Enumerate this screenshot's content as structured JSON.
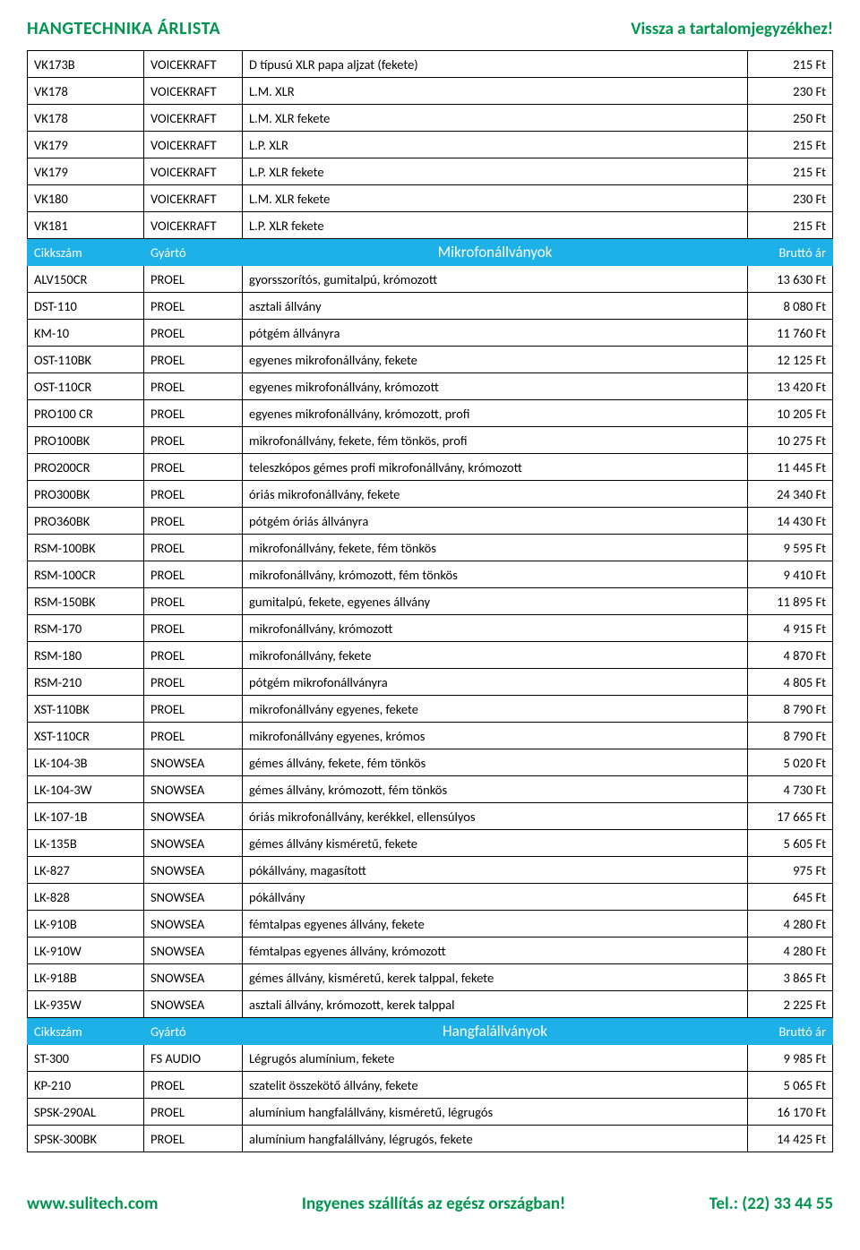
{
  "header": {
    "title": "HANGTECHNIKA ÁRLISTA",
    "back_link": "Vissza a tartalomjegyzékhez!"
  },
  "columns": {
    "code": "Cikkszám",
    "mfr": "Gyártó",
    "price": "Bruttó ár"
  },
  "sections": [
    {
      "title": null,
      "rows": [
        {
          "code": "VK173B",
          "mfr": "VOICEKRAFT",
          "desc": "D típusú XLR papa aljzat (fekete)",
          "price": "215 Ft"
        },
        {
          "code": "VK178",
          "mfr": "VOICEKRAFT",
          "desc": "L.M. XLR",
          "price": "230 Ft"
        },
        {
          "code": "VK178",
          "mfr": "VOICEKRAFT",
          "desc": "L.M. XLR fekete",
          "price": "250 Ft"
        },
        {
          "code": "VK179",
          "mfr": "VOICEKRAFT",
          "desc": "L.P. XLR",
          "price": "215 Ft"
        },
        {
          "code": "VK179",
          "mfr": "VOICEKRAFT",
          "desc": "L.P. XLR fekete",
          "price": "215 Ft"
        },
        {
          "code": "VK180",
          "mfr": "VOICEKRAFT",
          "desc": "L.M. XLR fekete",
          "price": "230 Ft"
        },
        {
          "code": "VK181",
          "mfr": "VOICEKRAFT",
          "desc": "L.P. XLR fekete",
          "price": "215 Ft"
        }
      ]
    },
    {
      "title": "Mikrofonállványok",
      "rows": [
        {
          "code": "ALV150CR",
          "mfr": "PROEL",
          "desc": "gyorsszorítós, gumitalpú, krómozott",
          "price": "13 630 Ft"
        },
        {
          "code": "DST-110",
          "mfr": "PROEL",
          "desc": "asztali állvány",
          "price": "8 080 Ft"
        },
        {
          "code": "KM-10",
          "mfr": "PROEL",
          "desc": "pótgém állványra",
          "price": "11 760 Ft"
        },
        {
          "code": "OST-110BK",
          "mfr": "PROEL",
          "desc": "egyenes mikrofonállvány, fekete",
          "price": "12 125 Ft"
        },
        {
          "code": "OST-110CR",
          "mfr": "PROEL",
          "desc": "egyenes mikrofonállvány, krómozott",
          "price": "13 420 Ft"
        },
        {
          "code": "PRO100 CR",
          "mfr": "PROEL",
          "desc": "egyenes mikrofonállvány, krómozott, profi",
          "price": "10 205 Ft"
        },
        {
          "code": "PRO100BK",
          "mfr": "PROEL",
          "desc": "mikrofonállvány, fekete, fém tönkös, profi",
          "price": "10 275 Ft"
        },
        {
          "code": "PRO200CR",
          "mfr": "PROEL",
          "desc": "teleszkópos gémes profi mikrofonállvány, krómozott",
          "price": "11 445 Ft"
        },
        {
          "code": "PRO300BK",
          "mfr": "PROEL",
          "desc": "óriás mikrofonállvány, fekete",
          "price": "24 340 Ft"
        },
        {
          "code": "PRO360BK",
          "mfr": "PROEL",
          "desc": "pótgém óriás állványra",
          "price": "14 430 Ft"
        },
        {
          "code": "RSM-100BK",
          "mfr": "PROEL",
          "desc": "mikrofonállvány, fekete, fém tönkös",
          "price": "9 595 Ft"
        },
        {
          "code": "RSM-100CR",
          "mfr": "PROEL",
          "desc": "mikrofonállvány, krómozott, fém tönkös",
          "price": "9 410 Ft"
        },
        {
          "code": "RSM-150BK",
          "mfr": "PROEL",
          "desc": "gumitalpú, fekete, egyenes állvány",
          "price": "11 895 Ft"
        },
        {
          "code": "RSM-170",
          "mfr": "PROEL",
          "desc": "mikrofonállvány, krómozott",
          "price": "4 915 Ft"
        },
        {
          "code": "RSM-180",
          "mfr": "PROEL",
          "desc": "mikrofonállvány, fekete",
          "price": "4 870 Ft"
        },
        {
          "code": "RSM-210",
          "mfr": "PROEL",
          "desc": "pótgém mikrofonállványra",
          "price": "4 805 Ft"
        },
        {
          "code": "XST-110BK",
          "mfr": "PROEL",
          "desc": "mikrofonállvány egyenes, fekete",
          "price": "8 790 Ft"
        },
        {
          "code": "XST-110CR",
          "mfr": "PROEL",
          "desc": "mikrofonállvány egyenes, krómos",
          "price": "8 790 Ft"
        },
        {
          "code": "LK-104-3B",
          "mfr": "SNOWSEA",
          "desc": "gémes állvány, fekete, fém tönkös",
          "price": "5 020 Ft"
        },
        {
          "code": "LK-104-3W",
          "mfr": "SNOWSEA",
          "desc": "gémes állvány, krómozott, fém tönkös",
          "price": "4 730 Ft"
        },
        {
          "code": "LK-107-1B",
          "mfr": "SNOWSEA",
          "desc": "óriás mikrofonállvány, kerékkel, ellensúlyos",
          "price": "17 665 Ft"
        },
        {
          "code": "LK-135B",
          "mfr": "SNOWSEA",
          "desc": "gémes állvány kisméretű, fekete",
          "price": "5 605 Ft"
        },
        {
          "code": "LK-827",
          "mfr": "SNOWSEA",
          "desc": "pókállvány, magasított",
          "price": "975 Ft"
        },
        {
          "code": "LK-828",
          "mfr": "SNOWSEA",
          "desc": "pókállvány",
          "price": "645 Ft"
        },
        {
          "code": "LK-910B",
          "mfr": "SNOWSEA",
          "desc": "fémtalpas egyenes állvány, fekete",
          "price": "4 280 Ft"
        },
        {
          "code": "LK-910W",
          "mfr": "SNOWSEA",
          "desc": "fémtalpas egyenes állvány, krómozott",
          "price": "4 280 Ft"
        },
        {
          "code": "LK-918B",
          "mfr": "SNOWSEA",
          "desc": "gémes állvány, kisméretű, kerek talppal, fekete",
          "price": "3 865 Ft"
        },
        {
          "code": "LK-935W",
          "mfr": "SNOWSEA",
          "desc": "asztali állvány, krómozott, kerek talppal",
          "price": "2 225 Ft"
        }
      ]
    },
    {
      "title": "Hangfalállványok",
      "rows": [
        {
          "code": "ST-300",
          "mfr": "FS AUDIO",
          "desc": "Légrugós alumínium, fekete",
          "price": "9 985 Ft"
        },
        {
          "code": "KP-210",
          "mfr": "PROEL",
          "desc": "szatelit összekötő állvány, fekete",
          "price": "5 065 Ft"
        },
        {
          "code": "SPSK-290AL",
          "mfr": "PROEL",
          "desc": "alumínium hangfalállvány, kisméretű, légrugós",
          "price": "16 170 Ft"
        },
        {
          "code": "SPSK-300BK",
          "mfr": "PROEL",
          "desc": "alumínium hangfalállvány, légrugós, fekete",
          "price": "14 425 Ft"
        }
      ]
    }
  ],
  "footer": {
    "site": "www.sulitech.com",
    "shipping": "Ingyenes szállítás az egész országban!",
    "tel": "Tel.: (22) 33 44 55"
  },
  "style": {
    "accent_green": "#00954d",
    "section_blue": "#1db1e7",
    "text_color": "#000000",
    "bg_color": "#ffffff"
  }
}
